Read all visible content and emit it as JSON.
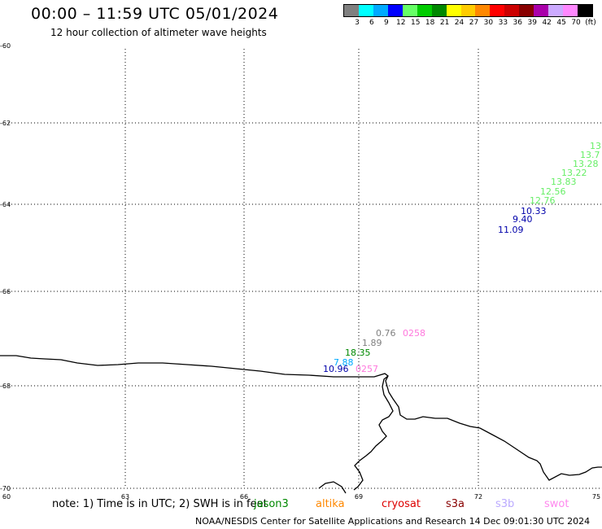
{
  "header": {
    "title": "00:00 – 11:59 UTC 05/01/2024",
    "subtitle": "12 hour collection of altimeter wave heights"
  },
  "legend": {
    "colors": [
      "#808080",
      "#00ffff",
      "#00aaff",
      "#0000ff",
      "#66ff66",
      "#00cc00",
      "#008800",
      "#ffff00",
      "#ffcc00",
      "#ff8800",
      "#ff0000",
      "#cc0000",
      "#880000",
      "#aa00aa",
      "#ccaaff",
      "#ff88ff",
      "#000000"
    ],
    "labels": [
      "3",
      "6",
      "9",
      "12",
      "15",
      "18",
      "21",
      "24",
      "27",
      "30",
      "33",
      "36",
      "39",
      "42",
      "45",
      "70",
      "(ft)"
    ]
  },
  "map": {
    "lat_labels": [
      "-60",
      "-62",
      "-64",
      "-66",
      "-68",
      "-70"
    ],
    "lon_labels": [
      "60",
      "63",
      "66",
      "69",
      "72",
      "75"
    ],
    "colors": {
      "coast": "#000000",
      "grid": "#000000"
    }
  },
  "observations": [
    {
      "text": "13.",
      "color": "#66ee66"
    },
    {
      "text": "13.7",
      "color": "#66ee66"
    },
    {
      "text": "13.28",
      "color": "#66ee66"
    },
    {
      "text": "13.22",
      "color": "#66ee66"
    },
    {
      "text": "13.83",
      "color": "#66ee66"
    },
    {
      "text": "12.56",
      "color": "#66ee66"
    },
    {
      "text": "12.76",
      "color": "#66ee66"
    },
    {
      "text": "10.33",
      "color": "#0000aa"
    },
    {
      "text": "9.40",
      "color": "#0000aa"
    },
    {
      "text": "11.09",
      "color": "#0000aa"
    },
    {
      "text": "0.76",
      "color": "#808080"
    },
    {
      "text": "0258",
      "color": "#ff77dd"
    },
    {
      "text": "1.89",
      "color": "#808080"
    },
    {
      "text": "18.35",
      "color": "#008800"
    },
    {
      "text": "7.88",
      "color": "#00aaff"
    },
    {
      "text": "10.96",
      "color": "#0000aa"
    },
    {
      "text": "0257",
      "color": "#ff77dd"
    }
  ],
  "footer": {
    "note": "note: 1) Time is in UTC; 2) SWH is in feet",
    "satellites": [
      {
        "name": "jason3",
        "color": "#008800"
      },
      {
        "name": "altika",
        "color": "#ff8800"
      },
      {
        "name": "cryosat",
        "color": "#dd0000"
      },
      {
        "name": "s3a",
        "color": "#880000"
      },
      {
        "name": "s3b",
        "color": "#bbaaff"
      },
      {
        "name": "swot",
        "color": "#ff88ee"
      }
    ],
    "credit": "NOAA/NESDIS Center for Satellite Applications and Research    14 Dec 09:01:30 UTC 2024"
  }
}
